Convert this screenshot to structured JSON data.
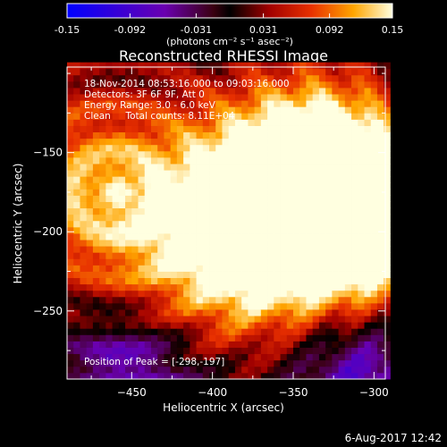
{
  "colorbar": {
    "tick_labels": [
      "-0.15",
      "-0.092",
      "-0.031",
      "0.031",
      "0.092",
      "0.15"
    ],
    "tick_values": [
      -0.15,
      -0.092,
      -0.031,
      0.031,
      0.092,
      0.15
    ],
    "units_label": "(photons cm⁻² s⁻¹ asec⁻²)",
    "range": [
      -0.15,
      0.15
    ]
  },
  "chart_data": {
    "type": "heatmap",
    "title": "Reconstructed RHESSI Image",
    "xlabel": "Heliocentric X (arcsec)",
    "ylabel": "Heliocentric Y (arcsec)",
    "xlim": [
      -490,
      -293
    ],
    "ylim": [
      -293,
      -96
    ],
    "xticks": [
      -450,
      -400,
      -350,
      -300
    ],
    "yticks": [
      -150,
      -200,
      -250
    ],
    "xtick_labels": [
      "−450",
      "−400",
      "−350",
      "−300"
    ],
    "ytick_labels": [
      "−150",
      "−200",
      "−250"
    ],
    "colormap": "rhessi-heat",
    "peak": [
      -298,
      -197
    ],
    "sources": [
      {
        "x": -320,
        "y": -200,
        "intensity": 0.15
      },
      {
        "x": -360,
        "y": -175,
        "intensity": 0.12
      },
      {
        "x": -330,
        "y": -150,
        "intensity": 0.11
      },
      {
        "x": -395,
        "y": -220,
        "intensity": 0.08
      },
      {
        "x": -460,
        "y": -180,
        "intensity": 0.06
      }
    ],
    "annotations": [
      "18-Nov-2014 08:53:16.000 to 09:03:16.000",
      "Detectors: 3F 6F 9F, Att 0",
      "Energy Range: 3.0 - 6.0 keV",
      "Clean     Total counts: 8.11E+04"
    ],
    "peak_label": "Position of Peak = [-298,-197]"
  },
  "footer": {
    "date": "6-Aug-2017 12:42"
  }
}
